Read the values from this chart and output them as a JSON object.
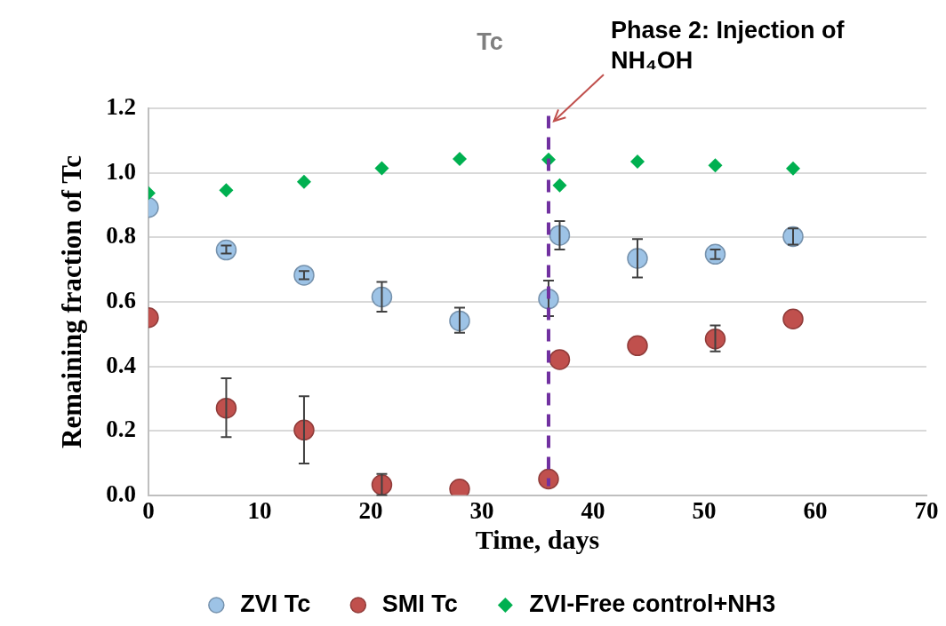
{
  "chart_data": {
    "type": "scatter",
    "title": "Tc",
    "xlabel": "Time, days",
    "ylabel": "Remaining fraction of Tc",
    "xlim": [
      0,
      70
    ],
    "xticks": [
      0,
      10,
      20,
      30,
      40,
      50,
      60,
      70
    ],
    "ylim": [
      0,
      1.2
    ],
    "yticks": [
      {
        "value": 0,
        "label": "0.0"
      },
      0.2,
      0.4,
      0.6,
      0.8,
      {
        "value": 1,
        "label": "1.0"
      },
      1.2
    ],
    "grid": "y",
    "legend": "bottom",
    "series": [
      {
        "name": "ZVI Tc",
        "color": "#9dc3e6",
        "marker": "circle",
        "x": [
          0,
          7,
          14,
          21,
          28,
          36,
          37,
          44,
          51,
          58
        ],
        "values": [
          0.893,
          0.761,
          0.683,
          0.615,
          0.541,
          0.609,
          0.807,
          0.735,
          0.748,
          0.803
        ],
        "errors": [
          null,
          [
            0.75,
            0.775
          ],
          [
            0.67,
            0.696
          ],
          [
            0.57,
            0.662
          ],
          [
            0.504,
            0.582
          ],
          [
            0.556,
            0.666
          ],
          [
            0.763,
            0.851
          ],
          [
            0.676,
            0.795
          ],
          [
            0.733,
            0.763
          ],
          [
            0.778,
            0.828
          ]
        ]
      },
      {
        "name": "SMI Tc",
        "color": "#c0504d",
        "marker": "circle",
        "x": [
          0,
          7,
          14,
          21,
          28,
          36,
          37,
          44,
          51,
          58
        ],
        "values": [
          0.551,
          0.27,
          0.202,
          0.032,
          0.019,
          0.05,
          0.421,
          0.464,
          0.485,
          0.547
        ],
        "errors": [
          null,
          [
            0.18,
            0.363
          ],
          [
            0.098,
            0.307
          ],
          [
            0,
            0.066
          ],
          null,
          null,
          null,
          null,
          [
            0.446,
            0.527
          ],
          null
        ]
      },
      {
        "name": "ZVI-Free control+NH3",
        "color": "#00b050",
        "marker": "diamond",
        "x": [
          0,
          7,
          14,
          21,
          28,
          36,
          37,
          44,
          51,
          58
        ],
        "values": [
          0.938,
          0.947,
          0.973,
          1.015,
          1.044,
          1.042,
          0.962,
          1.036,
          1.024,
          1.014
        ]
      }
    ],
    "ref_lines": [
      {
        "axis": "x",
        "value": 36,
        "label": "Phase 2: Injection of NH₄OH",
        "color": "#7030a0",
        "line_style": "dashed"
      }
    ]
  }
}
